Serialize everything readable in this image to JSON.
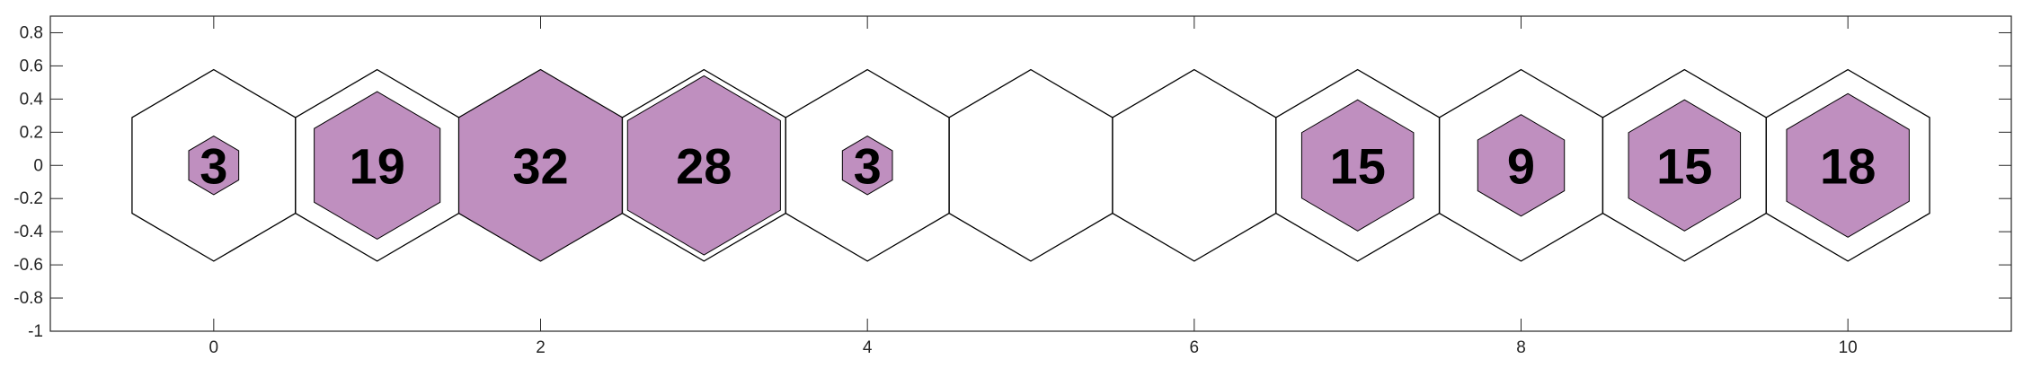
{
  "chart_data": {
    "type": "hexagon-hit-map",
    "xlim": [
      -1,
      11
    ],
    "ylim": [
      -1,
      0.9
    ],
    "x_ticks": [
      0,
      2,
      4,
      6,
      8,
      10
    ],
    "y_ticks": [
      -1,
      -0.8,
      -0.6,
      -0.4,
      -0.2,
      0,
      0.2,
      0.4,
      0.6,
      0.8
    ],
    "x_tick_labels": [
      "0",
      "2",
      "4",
      "6",
      "8",
      "10"
    ],
    "y_tick_labels": [
      "-1",
      "-0.8",
      "-0.6",
      "-0.4",
      "-0.2",
      "0",
      "0.2",
      "0.4",
      "0.6",
      "0.8"
    ],
    "cells": [
      {
        "x": 0,
        "hits": 3
      },
      {
        "x": 1,
        "hits": 19
      },
      {
        "x": 2,
        "hits": 32
      },
      {
        "x": 3,
        "hits": 28
      },
      {
        "x": 4,
        "hits": 3
      },
      {
        "x": 5,
        "hits": 0
      },
      {
        "x": 6,
        "hits": 0
      },
      {
        "x": 7,
        "hits": 15
      },
      {
        "x": 8,
        "hits": 9
      },
      {
        "x": 9,
        "hits": 15
      },
      {
        "x": 10,
        "hits": 18
      }
    ],
    "max_hits": 32,
    "fill_color": "#bf8fbf",
    "outline_color": "#000000",
    "grid": false
  }
}
